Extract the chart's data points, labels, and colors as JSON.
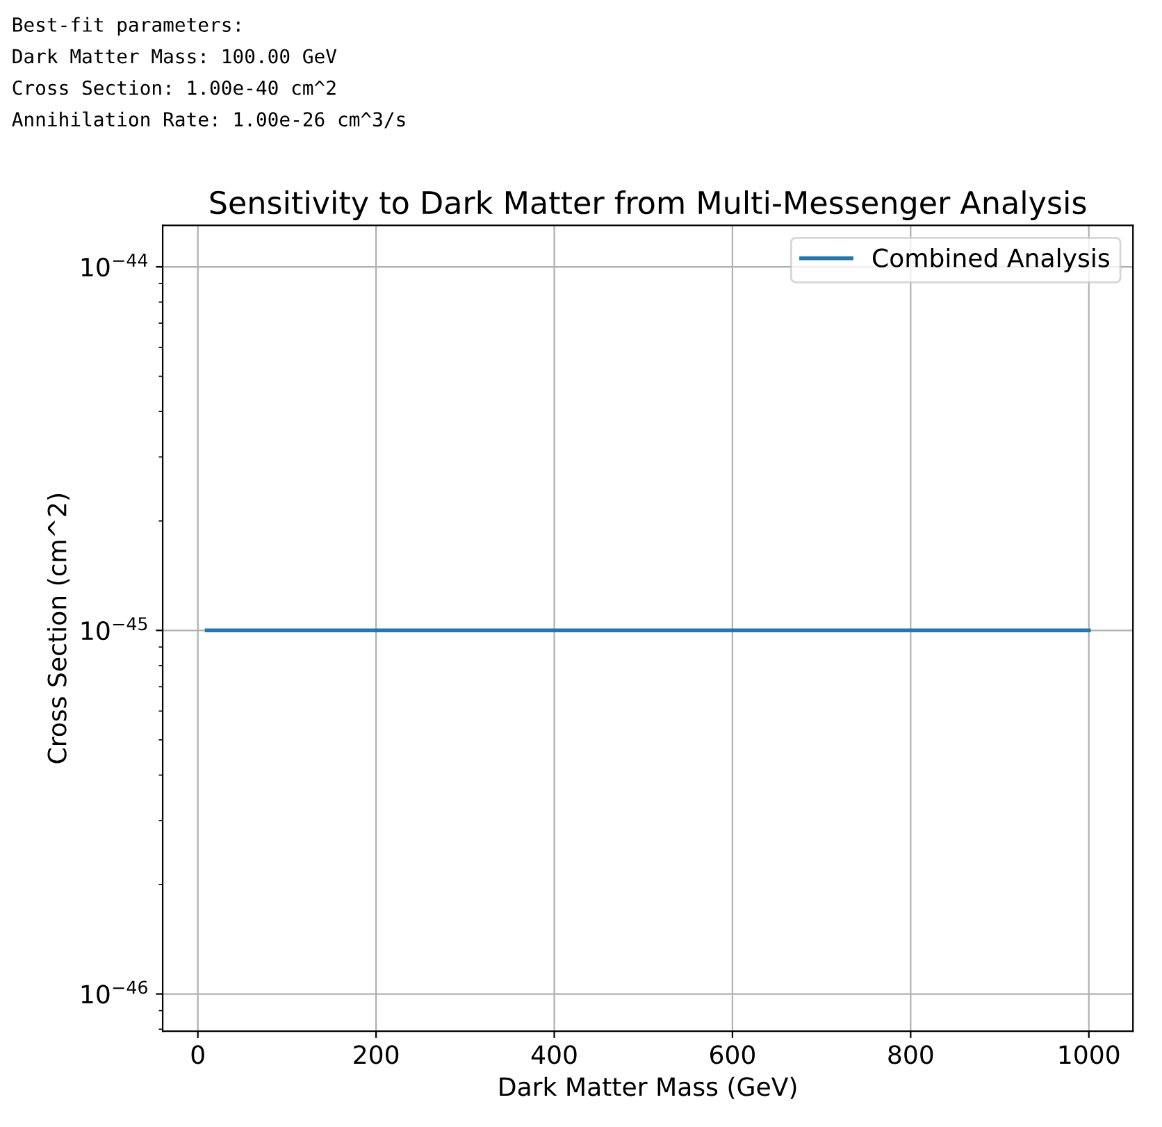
{
  "chart_data": {
    "type": "line",
    "title": "Sensitivity to Dark Matter from Multi-Messenger Analysis",
    "xlabel": "Dark Matter Mass (GeV)",
    "ylabel": "Cross Section (cm^2)",
    "annotations": [
      "Best-fit parameters:",
      "Dark Matter Mass: 100.00 GeV",
      "Cross Section: 1.00e-40 cm^2",
      "Annihilation Rate: 1.00e-26 cm^3/s"
    ],
    "series": [
      {
        "name": "Combined Analysis",
        "color": "#1f77b4",
        "x": [
          10,
          1000
        ],
        "values": [
          1e-45,
          1e-45
        ]
      }
    ],
    "log": "y",
    "xlim": [
      -39.5,
      1049.5
    ],
    "xticks": [
      0,
      200,
      400,
      600,
      800,
      1000
    ],
    "ylim": [
      7.9e-47,
      1.3e-44
    ],
    "yticks": [
      {
        "value": 1e-46,
        "label": "10$^{−46}$"
      },
      {
        "value": 1e-45,
        "label": "10$^{−45}$"
      },
      {
        "value": 1e-44,
        "label": "10$^{−44}$"
      }
    ],
    "grid": true,
    "legend": "top right",
    "line_style": "solid"
  }
}
